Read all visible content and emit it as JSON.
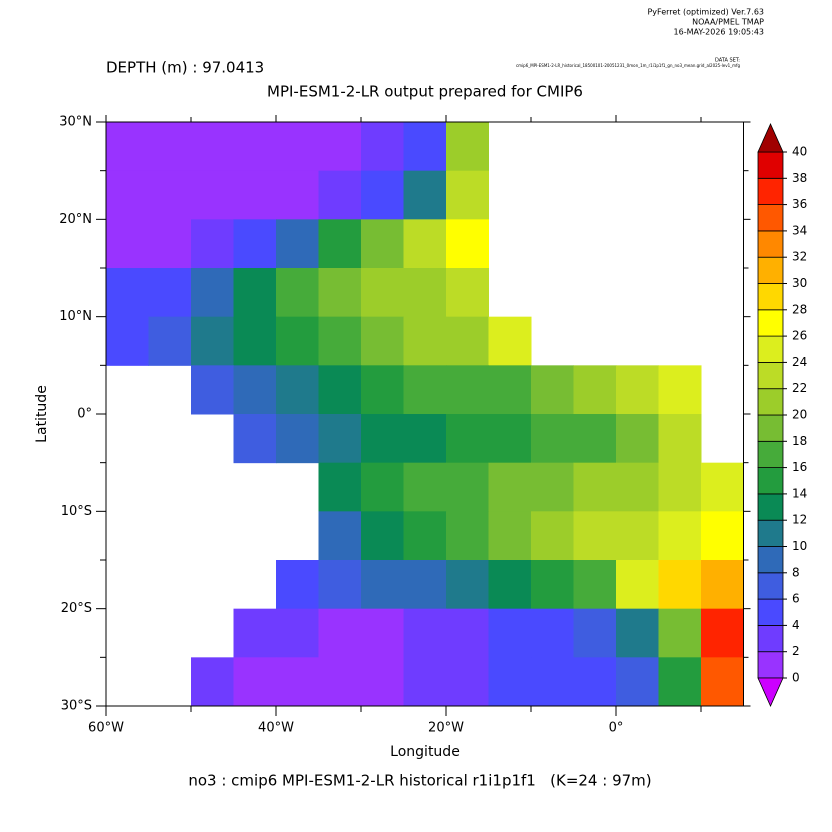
{
  "chart_data": {
    "type": "heatmap",
    "header": [
      "PyFerret (optimized) Ver.7.63",
      "NOAA/PMEL TMAP",
      "16-MAY-2026 19:05:43"
    ],
    "dataset_label": "DATA SET:",
    "dataset": "cmip6_MPI-ESM1-2-LR_historical_18500101-20051231_0mon_1m_r1i1p1f1_gn_no3_mean.grid_al2025-lev1_mfg",
    "depth_label": "DEPTH (m) : 97.0413",
    "title": "MPI-ESM1-2-LR output prepared for CMIP6",
    "xlabel": "Longitude",
    "ylabel": "Latitude",
    "footer": "no3 : cmip6 MPI-ESM1-2-LR historical r1i1p1f1   (K=24 : 97m)",
    "xlim": [
      -60,
      15
    ],
    "ylim": [
      -30,
      30
    ],
    "xticks": [
      {
        "value": -60,
        "label": "60°W"
      },
      {
        "value": -40,
        "label": "40°W"
      },
      {
        "value": -20,
        "label": "20°W"
      },
      {
        "value": 0,
        "label": "0°"
      }
    ],
    "xminor": [
      -50,
      -30,
      -10,
      10
    ],
    "yticks": [
      {
        "value": 30,
        "label": "30°N"
      },
      {
        "value": 20,
        "label": "20°N"
      },
      {
        "value": 10,
        "label": "10°N"
      },
      {
        "value": 0,
        "label": "0°"
      },
      {
        "value": -10,
        "label": "10°S"
      },
      {
        "value": -20,
        "label": "20°S"
      },
      {
        "value": -30,
        "label": "30°S"
      }
    ],
    "yminor": [
      25,
      15,
      5,
      -5,
      -15,
      -25
    ],
    "x": [
      -57.5,
      -52.5,
      -47.5,
      -42.5,
      -37.5,
      -32.5,
      -27.5,
      -22.5,
      -17.5,
      -12.5,
      -7.5,
      -2.5,
      2.5,
      7.5,
      12.5
    ],
    "y": [
      27.5,
      22.5,
      17.5,
      12.5,
      7.5,
      2.5,
      -2.5,
      -7.5,
      -12.5,
      -17.5,
      -22.5,
      -27.5
    ],
    "z": [
      [
        1,
        1,
        1,
        1,
        1,
        1,
        3,
        5,
        20,
        null,
        null,
        null,
        null,
        null,
        null
      ],
      [
        1,
        1,
        1,
        1,
        1,
        2,
        5,
        10,
        22,
        null,
        null,
        null,
        null,
        null,
        null
      ],
      [
        1,
        1,
        2,
        5,
        9,
        14,
        18,
        22,
        27,
        null,
        null,
        null,
        null,
        null,
        null
      ],
      [
        4,
        5,
        9,
        13,
        16,
        18,
        20,
        21,
        22,
        null,
        null,
        null,
        null,
        null,
        null
      ],
      [
        5,
        7,
        10,
        13,
        15,
        17,
        18,
        20,
        20,
        24,
        null,
        null,
        null,
        null,
        null
      ],
      [
        null,
        null,
        6,
        8,
        11,
        13,
        15,
        16,
        16,
        17,
        18,
        20,
        22,
        24,
        null
      ],
      [
        null,
        null,
        null,
        6,
        8,
        10,
        12,
        13,
        14,
        15,
        16,
        17,
        19,
        23,
        null
      ],
      [
        null,
        null,
        null,
        null,
        null,
        12,
        14,
        16,
        17,
        18,
        19,
        20,
        21,
        22,
        25
      ],
      [
        null,
        null,
        null,
        null,
        null,
        9,
        12,
        14,
        16,
        18,
        20,
        22,
        23,
        24,
        26
      ],
      [
        null,
        null,
        null,
        null,
        5,
        7,
        8,
        9,
        10,
        12,
        14,
        17,
        24,
        28,
        30
      ],
      [
        null,
        null,
        null,
        3,
        2,
        1,
        1,
        2,
        3,
        4,
        5,
        7,
        10,
        18,
        36
      ],
      [
        null,
        null,
        3,
        1,
        1,
        1,
        1,
        2,
        3,
        4,
        4,
        5,
        7,
        14,
        34
      ]
    ],
    "levels": [
      0,
      2,
      4,
      6,
      8,
      10,
      12,
      14,
      16,
      18,
      20,
      22,
      24,
      26,
      28,
      30,
      32,
      34,
      36,
      38,
      40
    ],
    "colors": [
      "#9933ff",
      "#6f3cff",
      "#4a4aff",
      "#3f5de0",
      "#2f6ab8",
      "#1f7a8c",
      "#0a8a55",
      "#239c3e",
      "#46ab3a",
      "#77bd33",
      "#9ccd2a",
      "#bcdc26",
      "#dcee1e",
      "#ffff00",
      "#ffd800",
      "#ffb000",
      "#ff8800",
      "#ff5800",
      "#ff2400",
      "#e00000"
    ],
    "under_color": "#cc00ff",
    "over_color": "#a00000"
  }
}
